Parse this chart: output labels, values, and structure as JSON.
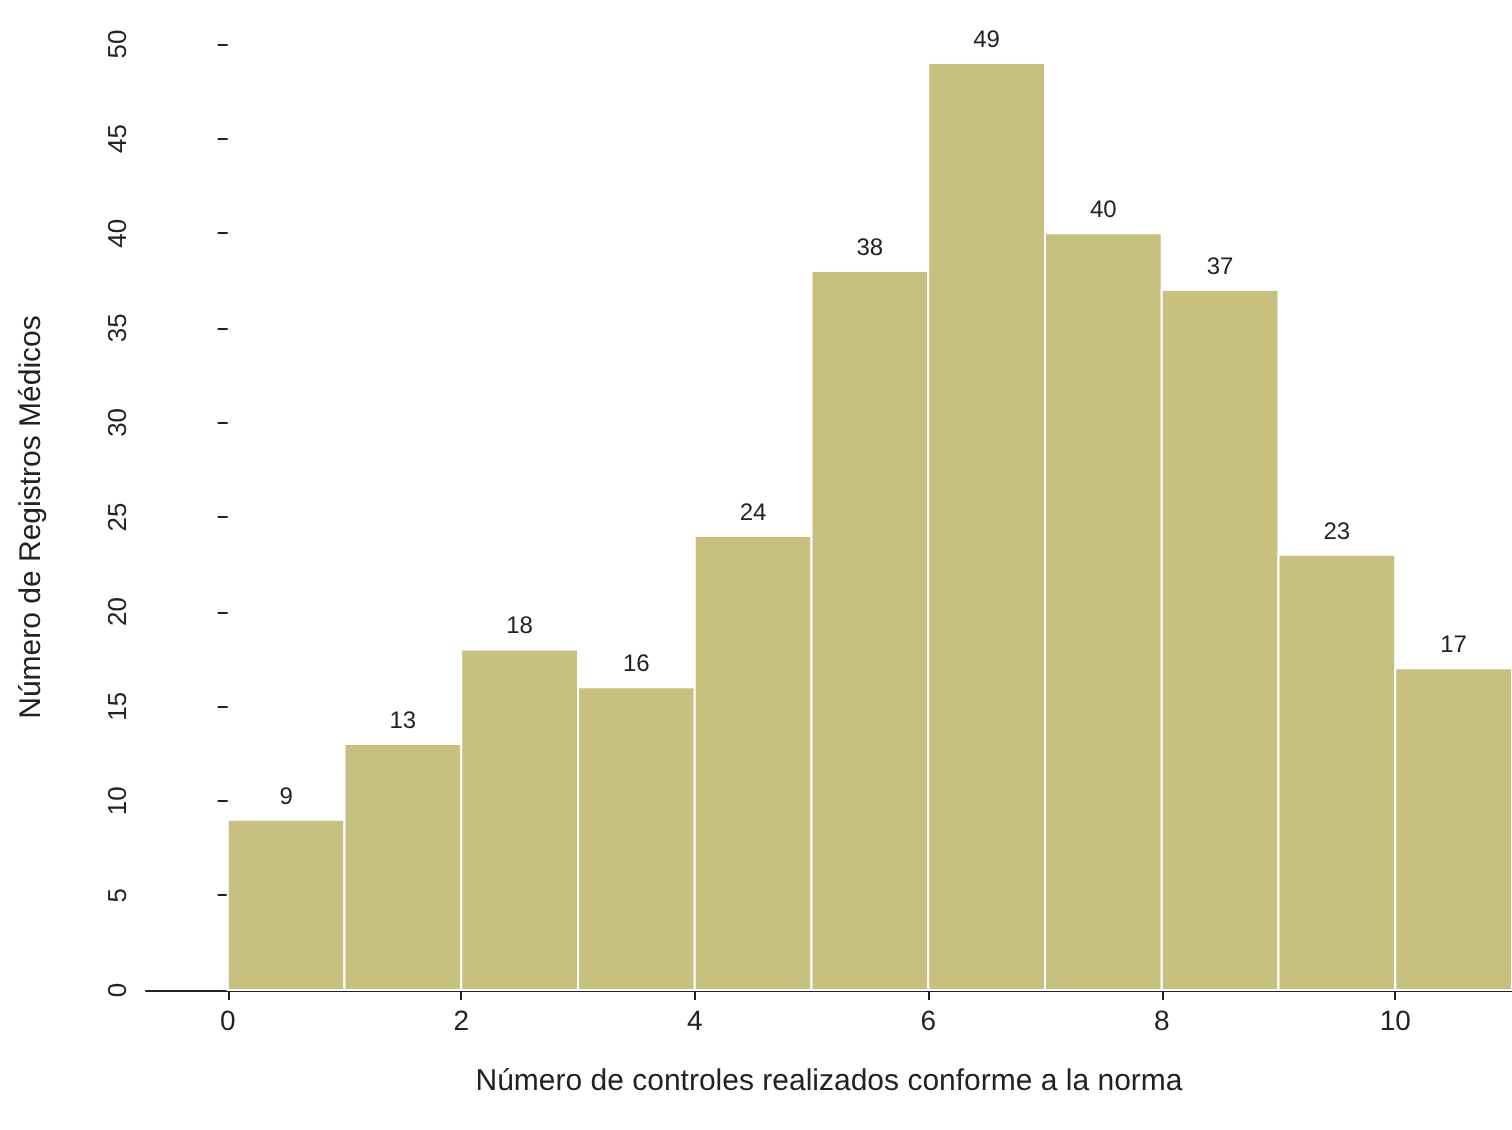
{
  "chart_data": {
    "type": "histogram",
    "xlabel": "Número de controles realizados conforme a la norma",
    "ylabel": "Número de Registros Médicos",
    "bins": [
      0,
      1,
      2,
      3,
      4,
      5,
      6,
      7,
      8,
      9,
      10,
      11
    ],
    "values": [
      9,
      13,
      18,
      16,
      24,
      38,
      49,
      40,
      37,
      23,
      17
    ],
    "color": "#c8c07f",
    "data_labels": true,
    "grid": false,
    "xlim": [
      -0.7,
      11
    ],
    "xticks": [
      0,
      2,
      4,
      6,
      8,
      10
    ],
    "ylim": [
      0,
      50
    ],
    "yticks": [
      0,
      5,
      10,
      15,
      20,
      25,
      30,
      35,
      40,
      45,
      50
    ]
  }
}
